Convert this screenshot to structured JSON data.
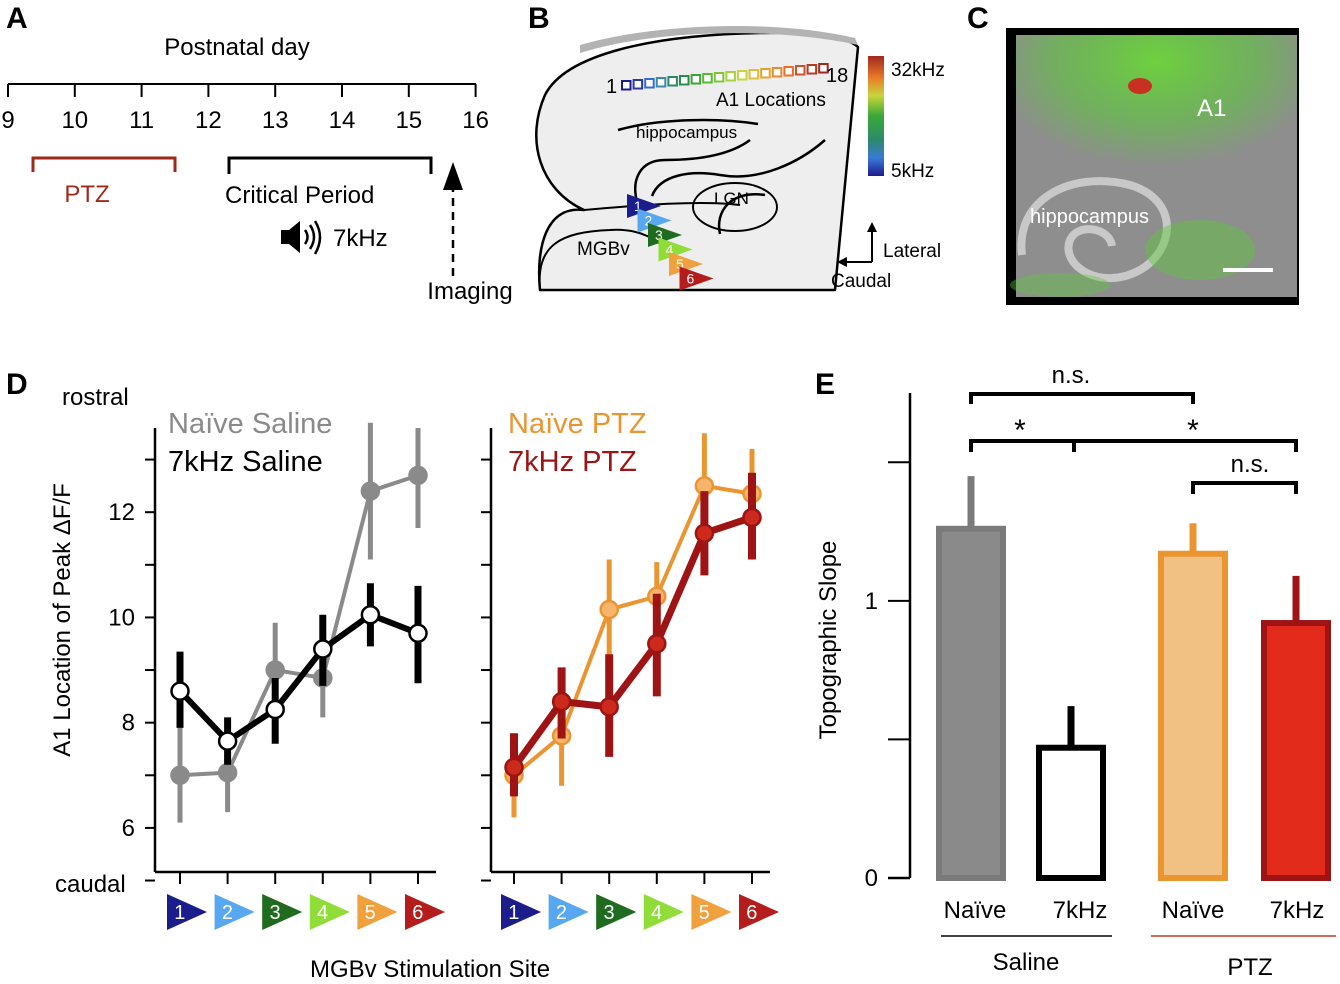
{
  "panels": {
    "a": {
      "label": "A",
      "axis_title": "Postnatal day",
      "ticks": [
        "9",
        "10",
        "11",
        "12",
        "13",
        "14",
        "15",
        "16"
      ],
      "ptz_label": "PTZ",
      "critical_label": "Critical Period",
      "tone_label": "7kHz",
      "imaging_label": "Imaging"
    },
    "b": {
      "label": "B",
      "num_first": "1",
      "num_last": "18",
      "a1_locations": "A1 Locations",
      "hippocampus": "hippocampus",
      "lgn": "LGN",
      "mgbv": "MGBv",
      "colorbar_high": "32kHz",
      "colorbar_low": "5kHz",
      "lateral": "Lateral",
      "caudal": "Caudal",
      "markers": [
        "1",
        "2",
        "3",
        "4",
        "5",
        "6"
      ]
    },
    "c": {
      "label": "C",
      "a1": "A1",
      "hippocampus": "hippocampus"
    },
    "d": {
      "label": "D",
      "rostral": "rostral",
      "caudal": "caudal",
      "ylabel": "A1 Location of Peak ΔF/F",
      "xlabel": "MGBv Stimulation Site",
      "yticks": [
        "6",
        "8",
        "10",
        "12"
      ]
    },
    "e": {
      "label": "E",
      "ylabel": "Topographic Slope",
      "yticks": [
        "0",
        "1"
      ],
      "bar_labels": [
        "Naïve",
        "7kHz",
        "Naïve",
        "7kHz"
      ],
      "groups": [
        "Saline",
        "PTZ"
      ],
      "sig": [
        "n.s.",
        "*",
        "*",
        "n.s."
      ]
    }
  },
  "colors": {
    "site_colors": [
      "#1c1d8c",
      "#57a8f0",
      "#1f6b1f",
      "#90dd3a",
      "#f0a03c",
      "#b51d1d"
    ],
    "naive_saline": "#8a8a8a",
    "khz_saline": "#000000",
    "naive_ptz": "#eb9530",
    "khz_ptz": "#9e1414",
    "bar_naive_ptz_fill": "#f0c183",
    "bar_khz_ptz_fill": "#e32b1c",
    "ptz_bracket": "#9e2a1a",
    "group_line_ptz": "#c03a2a"
  },
  "chart_data": [
    {
      "type": "line",
      "panel": "D-left",
      "x": [
        1,
        2,
        3,
        4,
        5,
        6
      ],
      "ylim": [
        5.2,
        13.6
      ],
      "ylabel": "A1 Location of Peak ΔF/F",
      "xlabel": "MGBv Stimulation Site",
      "series": [
        {
          "name": "Naïve Saline",
          "values": [
            7.0,
            7.05,
            9.0,
            8.85,
            12.4,
            12.7
          ],
          "err_low": [
            6.1,
            6.3,
            8.1,
            8.1,
            11.1,
            11.7
          ],
          "err_high": [
            7.9,
            7.8,
            9.9,
            9.6,
            13.7,
            13.6
          ]
        },
        {
          "name": "7kHz Saline",
          "values": [
            8.6,
            7.65,
            8.25,
            9.4,
            10.05,
            9.7
          ],
          "err_low": [
            7.9,
            7.2,
            7.6,
            8.7,
            9.45,
            8.75
          ],
          "err_high": [
            9.35,
            8.1,
            8.85,
            10.05,
            10.65,
            10.6
          ]
        }
      ]
    },
    {
      "type": "line",
      "panel": "D-right",
      "x": [
        1,
        2,
        3,
        4,
        5,
        6
      ],
      "ylim": [
        5.2,
        13.6
      ],
      "series": [
        {
          "name": "Naïve PTZ",
          "values": [
            7.0,
            7.75,
            10.15,
            10.4,
            12.5,
            12.35
          ],
          "err_low": [
            6.2,
            6.8,
            9.1,
            9.8,
            11.6,
            11.6
          ],
          "err_high": [
            7.8,
            8.7,
            11.1,
            11.05,
            13.5,
            13.2
          ]
        },
        {
          "name": "7kHz PTZ",
          "values": [
            7.15,
            8.4,
            8.3,
            9.5,
            11.6,
            11.9
          ],
          "err_low": [
            6.6,
            7.7,
            7.35,
            8.5,
            10.8,
            11.1
          ],
          "err_high": [
            7.8,
            9.05,
            9.3,
            10.45,
            12.4,
            12.75
          ]
        }
      ]
    },
    {
      "type": "bar",
      "panel": "E",
      "categories": [
        "Naïve",
        "7kHz",
        "Naïve",
        "7kHz"
      ],
      "groups": [
        "Saline",
        "Saline",
        "PTZ",
        "PTZ"
      ],
      "values": [
        1.26,
        0.47,
        1.17,
        0.92
      ],
      "err_high": [
        1.45,
        0.62,
        1.28,
        1.09
      ],
      "ylim": [
        0,
        1.75
      ],
      "ylabel": "Topographic Slope"
    }
  ]
}
